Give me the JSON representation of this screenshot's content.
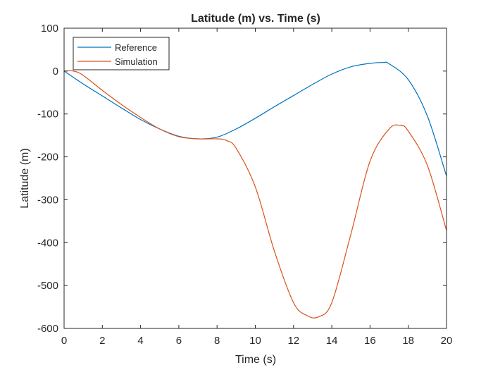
{
  "chart_data": {
    "type": "line",
    "title": "Latitude (m) vs. Time (s)",
    "xlabel": "Time (s)",
    "ylabel": "Latitude (m)",
    "xlim": [
      0,
      20
    ],
    "ylim": [
      -600,
      100
    ],
    "xticks": [
      0,
      2,
      4,
      6,
      8,
      10,
      12,
      14,
      16,
      18,
      20
    ],
    "yticks": [
      100,
      0,
      -100,
      -200,
      -300,
      -400,
      -500,
      -600
    ],
    "grid": false,
    "legend_position": "top-left",
    "colors": {
      "axis": "#262626",
      "background": "#ffffff"
    },
    "series": [
      {
        "name": "Reference",
        "color": "#0072BD",
        "x": [
          0,
          1,
          2,
          3,
          4,
          5,
          6,
          7,
          8,
          9,
          10,
          11,
          12,
          13,
          14,
          15,
          16,
          16.7,
          17,
          18,
          19,
          20
        ],
        "y": [
          0,
          -30,
          -58,
          -86,
          -113,
          -135,
          -152,
          -158,
          -154,
          -135,
          -110,
          -83,
          -57,
          -31,
          -7,
          10,
          18,
          20,
          17,
          -20,
          -105,
          -245
        ]
      },
      {
        "name": "Simulation",
        "color": "#D95319",
        "x": [
          0,
          0.5,
          1,
          2,
          3,
          4,
          5,
          6,
          7,
          8,
          8.5,
          9,
          10,
          11,
          12,
          12.7,
          13.3,
          14,
          15,
          16,
          17,
          17.6,
          18,
          19,
          20
        ],
        "y": [
          0,
          0,
          -10,
          -45,
          -78,
          -108,
          -135,
          -153,
          -158,
          -158,
          -162,
          -180,
          -270,
          -420,
          -540,
          -570,
          -573,
          -540,
          -380,
          -210,
          -135,
          -127,
          -140,
          -220,
          -372
        ]
      }
    ]
  }
}
